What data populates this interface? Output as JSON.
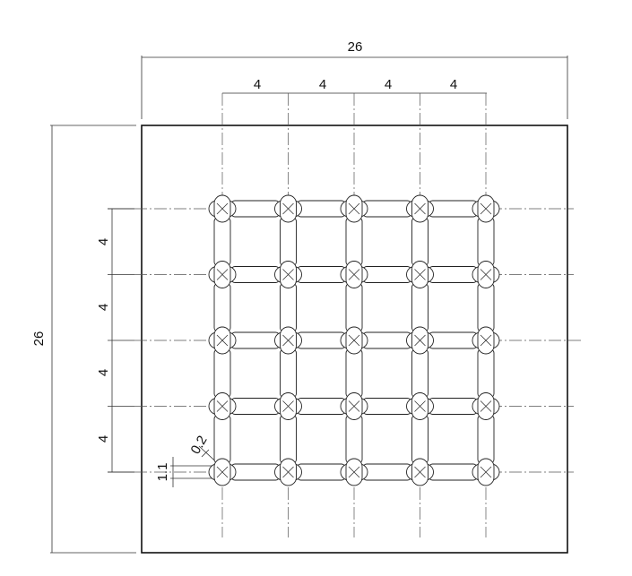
{
  "drawing": {
    "overall_width": "26",
    "overall_height": "26",
    "column_pitches": [
      "4",
      "4",
      "4",
      "4"
    ],
    "row_pitches": [
      "4",
      "4",
      "4",
      "4"
    ],
    "slot_width_dim": "1.1",
    "radius_dim": "0.2",
    "grid_columns": 5,
    "grid_rows": 5
  }
}
